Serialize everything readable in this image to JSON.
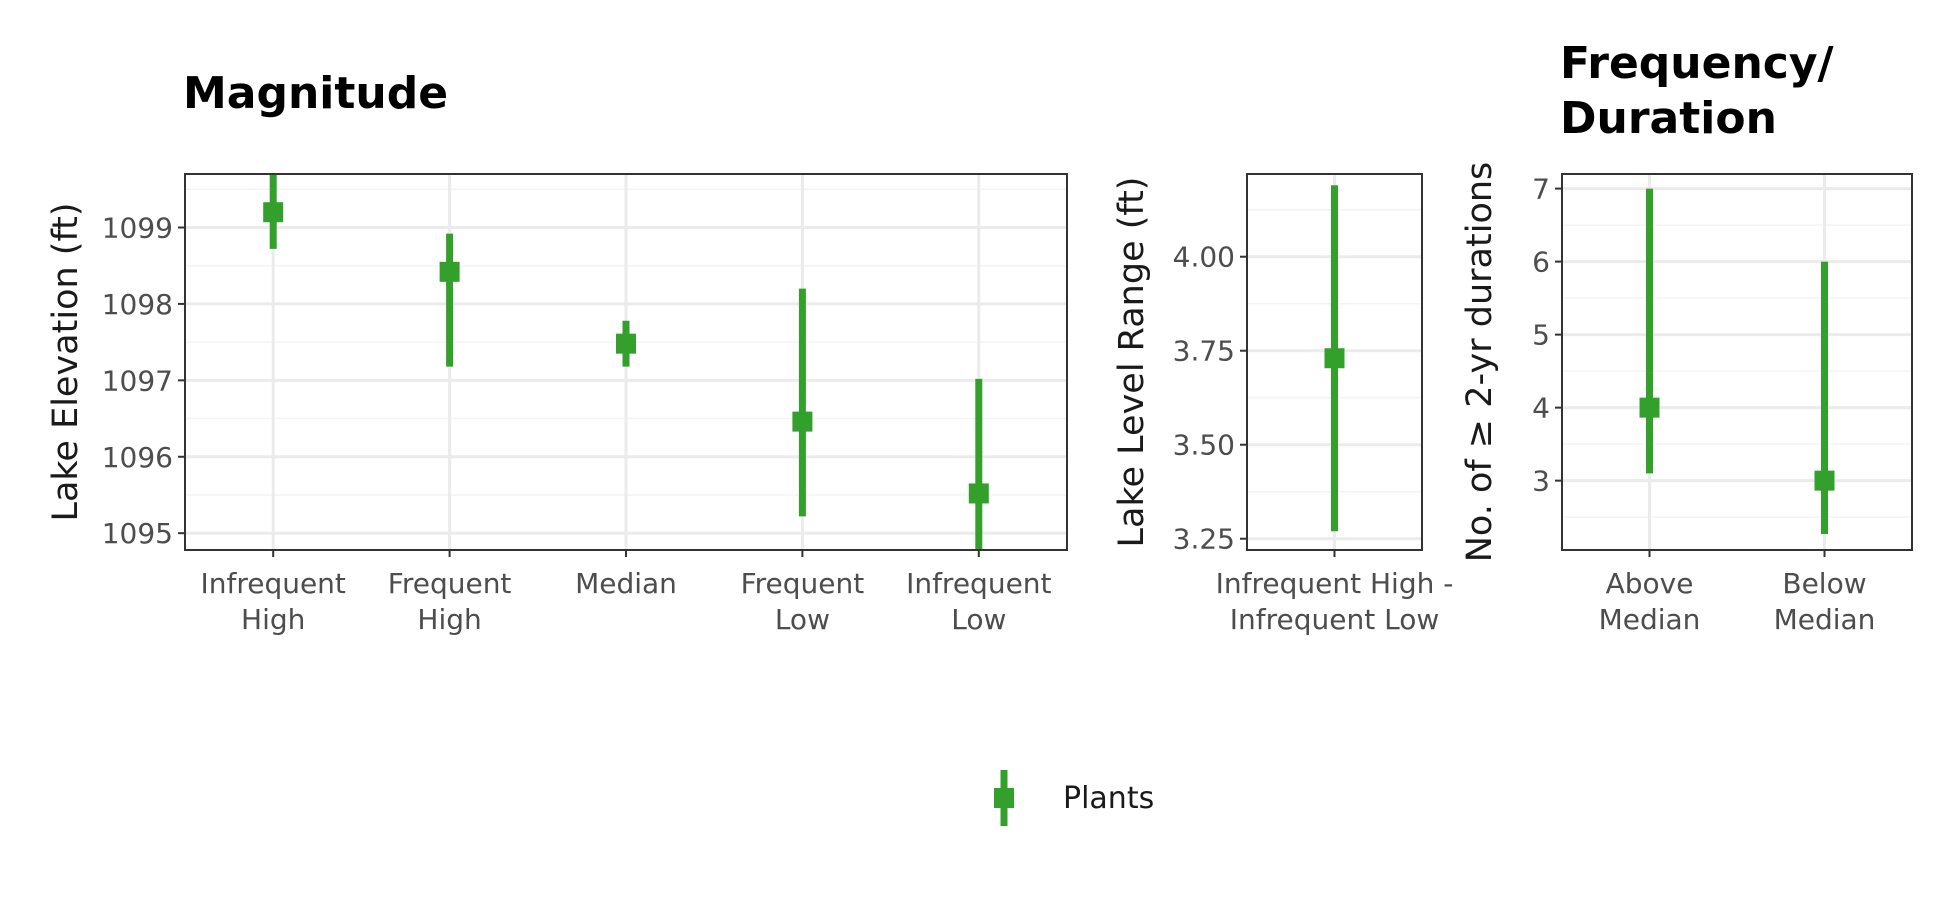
{
  "colors": {
    "series": "#33a02c",
    "grid_major": "#ebebeb",
    "grid_minor": "#f4f4f4",
    "border": "#333333"
  },
  "legend": {
    "position": "bottom",
    "label": "Plants"
  },
  "chart_data": [
    {
      "type": "pointrange",
      "title": "Magnitude",
      "xlabel": "",
      "ylabel": "Lake Elevation (ft)",
      "categories": [
        [
          "Infrequent",
          "High"
        ],
        [
          "Frequent",
          "High"
        ],
        [
          "Median"
        ],
        [
          "Frequent",
          "Low"
        ],
        [
          "Infrequent",
          "Low"
        ]
      ],
      "ylim": [
        1094.78,
        1099.7
      ],
      "yticks": [
        1095,
        1096,
        1097,
        1098,
        1099
      ],
      "series": [
        {
          "name": "Plants",
          "values": [
            1099.2,
            1098.42,
            1097.48,
            1096.46,
            1095.52
          ],
          "lower": [
            1098.72,
            1097.18,
            1097.18,
            1095.22,
            1094.78
          ],
          "upper": [
            1099.7,
            1098.92,
            1097.78,
            1098.2,
            1097.02
          ]
        }
      ],
      "grid": true
    },
    {
      "type": "pointrange",
      "title": "",
      "xlabel": "",
      "ylabel": "Lake Level Range (ft)",
      "categories": [
        [
          "Infrequent High -",
          "Infrequent Low"
        ]
      ],
      "ylim": [
        3.22,
        4.22
      ],
      "yticks": [
        3.25,
        3.5,
        3.75,
        4.0
      ],
      "ytick_labels": [
        "3.25",
        "3.50",
        "3.75",
        "4.00"
      ],
      "series": [
        {
          "name": "Plants",
          "values": [
            3.73
          ],
          "lower": [
            3.27
          ],
          "upper": [
            4.19
          ]
        }
      ],
      "grid": true
    },
    {
      "type": "pointrange",
      "title": [
        "Frequency/",
        "Duration"
      ],
      "xlabel": "",
      "ylabel": "No. of ≥ 2-yr durations",
      "categories": [
        [
          "Above",
          "Median"
        ],
        [
          "Below",
          "Median"
        ]
      ],
      "ylim": [
        2.05,
        7.2
      ],
      "yticks": [
        3,
        4,
        5,
        6,
        7
      ],
      "series": [
        {
          "name": "Plants",
          "values": [
            4,
            3
          ],
          "lower": [
            3.1,
            2.27
          ],
          "upper": [
            7,
            6
          ]
        }
      ],
      "grid": true
    }
  ]
}
